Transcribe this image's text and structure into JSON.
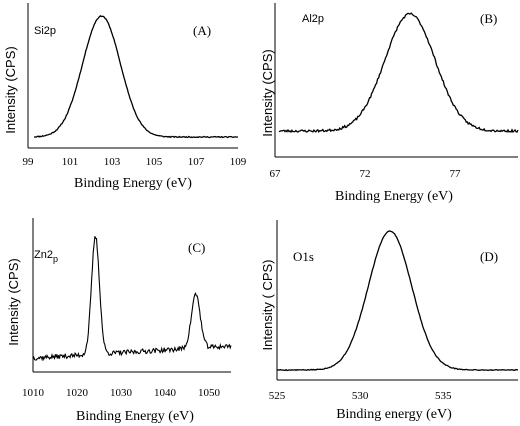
{
  "chart_data": [
    {
      "type": "line",
      "panel_letter": "(A)",
      "peak_label": "Si2p",
      "xlabel": "Binding Energy (eV)",
      "ylabel": "Intensity (CPS)",
      "xticks": [
        "99",
        "101",
        "103",
        "105",
        "107",
        "109"
      ],
      "xlim": [
        99,
        109
      ],
      "ylim": [
        0,
        1
      ],
      "peaks": [
        {
          "center": 102.5,
          "width": 0.9,
          "height": 1.0
        }
      ],
      "baseline": 0.02,
      "noise": 0.004,
      "seed": 11
    },
    {
      "type": "line",
      "panel_letter": "(B)",
      "peak_label": "Al2p",
      "xlabel": "Binding Energy (eV)",
      "ylabel": "Intensity (CPS)",
      "xticks": [
        "67",
        "72",
        "77"
      ],
      "xlim": [
        67,
        80.5
      ],
      "ylim": [
        0,
        1
      ],
      "peaks": [
        {
          "center": 74.5,
          "width": 1.4,
          "height": 1.0
        }
      ],
      "baseline": 0.04,
      "noise": 0.01,
      "seed": 23
    },
    {
      "type": "line",
      "panel_letter": "(C)",
      "peak_label": "Zn2",
      "peak_label_sub": "p",
      "xlabel": "Binding Energy (eV)",
      "ylabel": "Intensity (CPS)",
      "xticks": [
        "1010",
        "1020",
        "1030",
        "1040",
        "1050"
      ],
      "xlim": [
        1010,
        1055
      ],
      "ylim": [
        0,
        1
      ],
      "peaks": [
        {
          "center": 1024.2,
          "width": 0.9,
          "height": 0.98
        },
        {
          "center": 1047.0,
          "width": 1.0,
          "height": 0.45
        }
      ],
      "baseline": 0.06,
      "baseline_slope": 0.1,
      "noise": 0.02,
      "seed": 37
    },
    {
      "type": "line",
      "panel_letter": "(D)",
      "peak_label": "O1s",
      "xlabel": "Binding energy (eV)",
      "ylabel": "Intensity ( CPS)",
      "xticks": [
        "525",
        "530",
        "535"
      ],
      "xlim": [
        525,
        539.5
      ],
      "ylim": [
        0,
        1
      ],
      "peaks": [
        {
          "center": 531.8,
          "width": 1.3,
          "height": 1.0
        }
      ],
      "baseline": 0.02,
      "noise": 0.003,
      "seed": 5
    }
  ]
}
